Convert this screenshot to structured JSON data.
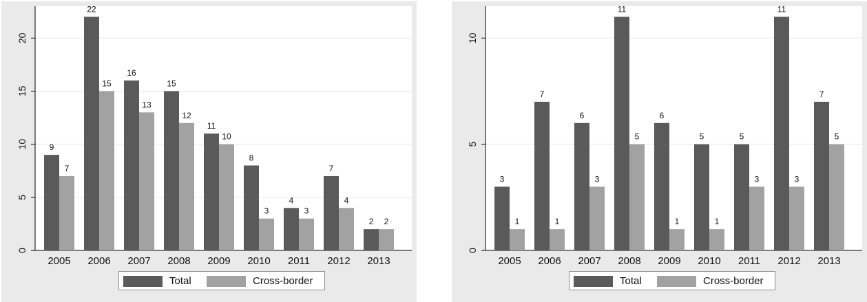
{
  "colors": {
    "total": "#5a5a5a",
    "cross_border": "#a2a2a2",
    "panel_bg": "#eaeaea",
    "plot_bg": "#ffffff",
    "grid": "#e6e6e6"
  },
  "legend": {
    "total": "Total",
    "cross_border": "Cross-border"
  },
  "chart_data": [
    {
      "type": "bar",
      "categories": [
        "2005",
        "2006",
        "2007",
        "2008",
        "2009",
        "2010",
        "2011",
        "2012",
        "2013"
      ],
      "series": [
        {
          "name": "Total",
          "values": [
            9,
            22,
            16,
            15,
            11,
            8,
            4,
            7,
            2
          ]
        },
        {
          "name": "Cross-border",
          "values": [
            7,
            15,
            13,
            12,
            10,
            3,
            3,
            4,
            2
          ]
        }
      ],
      "ylim": [
        0,
        23
      ],
      "yticks": [
        0,
        5,
        10,
        15,
        20
      ],
      "ytick_labels": [
        "0",
        "5",
        "10",
        "15",
        "20"
      ],
      "grid": true,
      "data_labels": true,
      "legend_position": "bottom"
    },
    {
      "type": "bar",
      "categories": [
        "2005",
        "2006",
        "2007",
        "2008",
        "2009",
        "2010",
        "2011",
        "2012",
        "2013"
      ],
      "series": [
        {
          "name": "Total",
          "values": [
            3,
            7,
            6,
            11,
            6,
            5,
            5,
            11,
            7
          ]
        },
        {
          "name": "Cross-border",
          "values": [
            1,
            1,
            3,
            5,
            1,
            1,
            3,
            3,
            5
          ]
        }
      ],
      "ylim": [
        0,
        11.5
      ],
      "yticks": [
        0,
        5,
        10
      ],
      "ytick_labels": [
        "0",
        "5",
        "10"
      ],
      "grid": true,
      "data_labels": true,
      "legend_position": "bottom"
    }
  ]
}
